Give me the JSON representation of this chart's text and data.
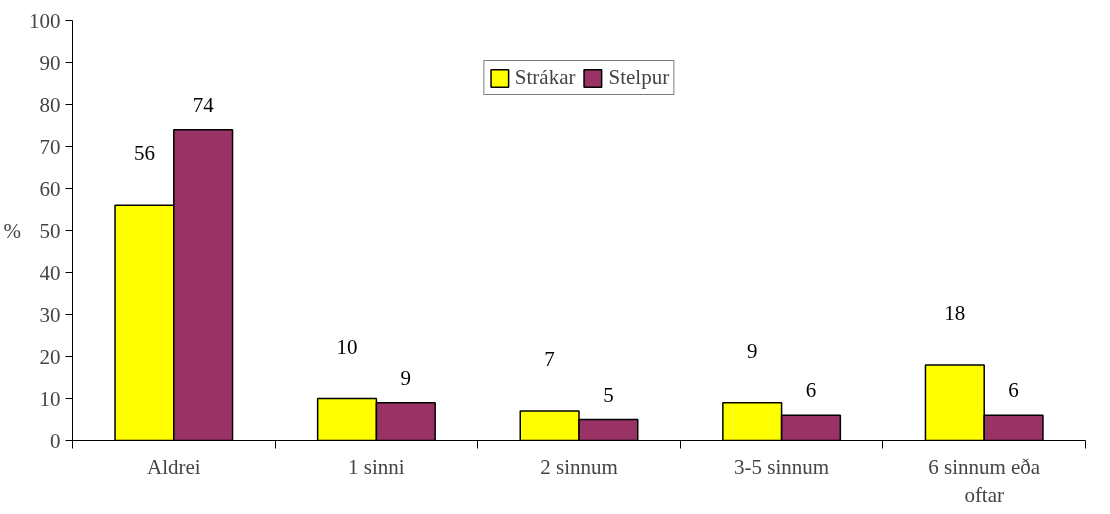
{
  "chart_data": {
    "type": "bar",
    "ylabel": "%",
    "categories": [
      "Aldrei",
      "1 sinni",
      "2 sinnum",
      "3-5 sinnum",
      "6 sinnum eða oftar"
    ],
    "series": [
      {
        "name": "Strákar",
        "color": "#ffff00",
        "values": [
          56,
          10,
          7,
          9,
          18
        ]
      },
      {
        "name": "Stelpur",
        "color": "#993366",
        "values": [
          74,
          9,
          5,
          6,
          6
        ]
      }
    ],
    "ylim": [
      0,
      100
    ],
    "yticks": [
      0,
      10,
      20,
      30,
      40,
      50,
      60,
      70,
      80,
      90,
      100
    ],
    "data_labels": true,
    "legend": "top",
    "grid": false
  }
}
